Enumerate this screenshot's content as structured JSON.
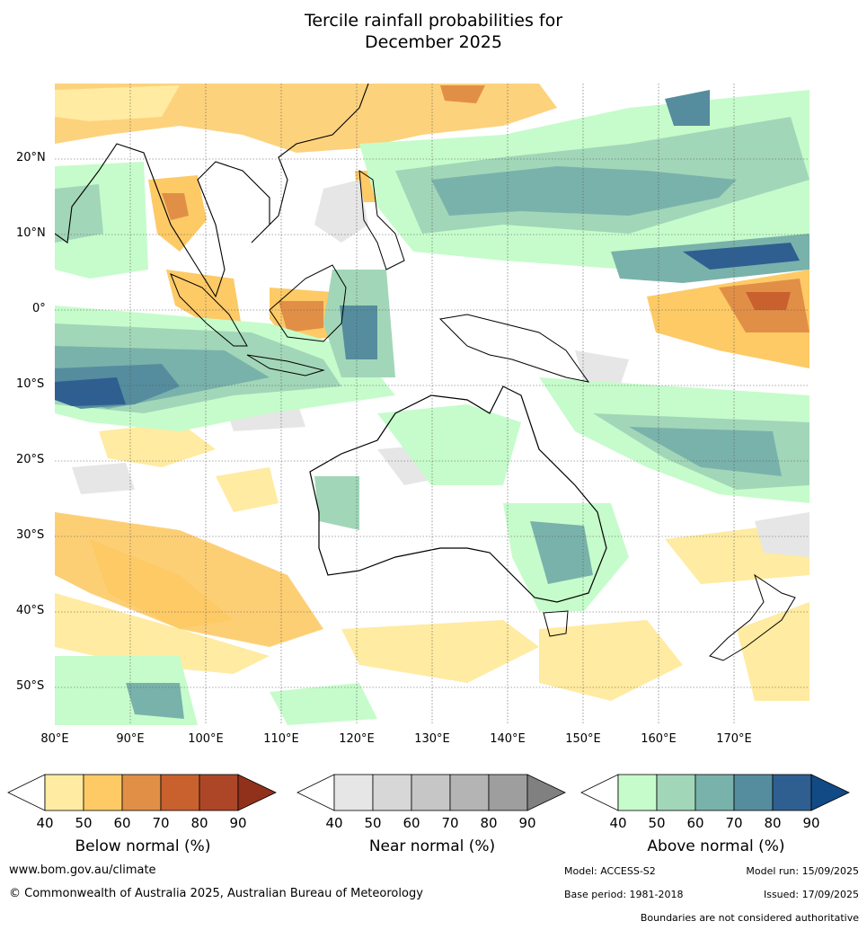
{
  "title": [
    "Tercile rainfall probabilities for",
    "December 2025"
  ],
  "map": {
    "lon_labels": [
      "80°E",
      "90°E",
      "100°E",
      "110°E",
      "120°E",
      "130°E",
      "140°E",
      "150°E",
      "160°E",
      "170°E"
    ],
    "lat_labels": [
      "20°N",
      "10°N",
      "0°",
      "10°S",
      "20°S",
      "30°S",
      "40°S",
      "50°S"
    ],
    "extent": {
      "lon": [
        80,
        180
      ],
      "lat": [
        -55,
        30
      ]
    }
  },
  "legends": [
    {
      "title": "Below normal (%)",
      "ticks": [
        "40",
        "50",
        "60",
        "70",
        "80",
        "90"
      ],
      "colors": [
        "#ffffff",
        "#ffeba1",
        "#fdca66",
        "#e18f47",
        "#c9612f",
        "#ad4626",
        "#92311b"
      ]
    },
    {
      "title": "Near normal (%)",
      "ticks": [
        "40",
        "50",
        "60",
        "70",
        "80",
        "90"
      ],
      "colors": [
        "#ffffff",
        "#e6e6e6",
        "#d7d7d7",
        "#c6c6c6",
        "#b4b4b4",
        "#9e9e9e",
        "#808080"
      ]
    },
    {
      "title": "Above normal (%)",
      "ticks": [
        "40",
        "50",
        "60",
        "70",
        "80",
        "90"
      ],
      "colors": [
        "#ffffff",
        "#c6fccb",
        "#a2d6b8",
        "#79b2ab",
        "#558d9e",
        "#2f5f91",
        "#124a86"
      ]
    }
  ],
  "footer": {
    "website": "www.bom.gov.au/climate",
    "copyright": "© Commonwealth of Australia 2025, Australian Bureau of Meteorology",
    "model": "Model: ACCESS-S2",
    "model_run": "Model run: 15/09/2025",
    "base_period": "Base period: 1981-2018",
    "issued": "Issued: 17/09/2025",
    "disclaimer": "Boundaries are not considered authoritative"
  }
}
